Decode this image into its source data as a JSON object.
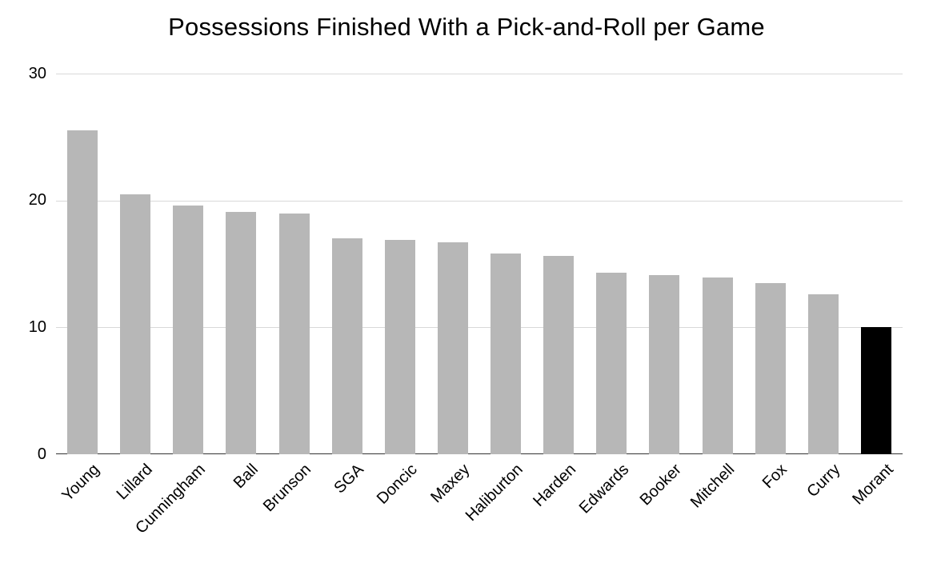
{
  "chart_data": {
    "type": "bar",
    "title": "Possessions Finished With a Pick-and-Roll per Game",
    "categories": [
      "Young",
      "Lillard",
      "Cunningham",
      "Ball",
      "Brunson",
      "SGA",
      "Doncic",
      "Maxey",
      "Haliburton",
      "Harden",
      "Edwards",
      "Booker",
      "Mitchell",
      "Fox",
      "Curry",
      "Morant"
    ],
    "values": [
      25.5,
      20.5,
      19.6,
      19.1,
      19.0,
      17.0,
      16.9,
      16.7,
      15.8,
      15.6,
      14.3,
      14.1,
      13.9,
      13.5,
      12.6,
      10.0
    ],
    "xlabel": "",
    "ylabel": "",
    "ylim": [
      0,
      30
    ],
    "yticks": [
      0,
      10,
      20,
      30
    ],
    "grid": true,
    "legend": false,
    "bar_color": "#b7b7b7",
    "highlight_category": "Morant",
    "highlight_color": "#000000",
    "gridline_color": "#d9d9d9",
    "axis_color": "#333333"
  }
}
